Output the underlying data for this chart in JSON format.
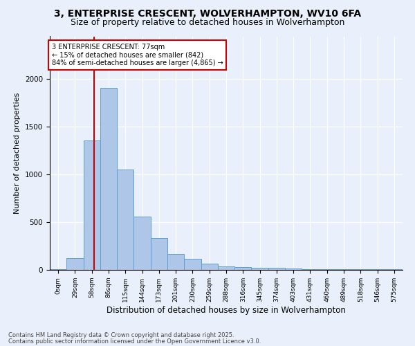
{
  "title": "3, ENTERPRISE CRESCENT, WOLVERHAMPTON, WV10 6FA",
  "subtitle": "Size of property relative to detached houses in Wolverhampton",
  "xlabel": "Distribution of detached houses by size in Wolverhampton",
  "ylabel": "Number of detached properties",
  "bar_labels": [
    "0sqm",
    "29sqm",
    "58sqm",
    "86sqm",
    "115sqm",
    "144sqm",
    "173sqm",
    "201sqm",
    "230sqm",
    "259sqm",
    "288sqm",
    "316sqm",
    "345sqm",
    "374sqm",
    "403sqm",
    "431sqm",
    "460sqm",
    "489sqm",
    "518sqm",
    "546sqm",
    "575sqm"
  ],
  "bar_values": [
    10,
    125,
    1360,
    1910,
    1055,
    560,
    335,
    170,
    115,
    65,
    38,
    30,
    25,
    20,
    15,
    5,
    5,
    5,
    5,
    5,
    10
  ],
  "bar_color": "#aec6e8",
  "bar_edge_color": "#5a9fd4",
  "property_sqm": 77,
  "annotation_title": "3 ENTERPRISE CRESCENT: 77sqm",
  "annotation_line1": "← 15% of detached houses are smaller (842)",
  "annotation_line2": "84% of semi-detached houses are larger (4,865) →",
  "annotation_box_color": "#ffffff",
  "annotation_box_edge": "#cc0000",
  "vline_color": "#cc0000",
  "footer1": "Contains HM Land Registry data © Crown copyright and database right 2025.",
  "footer2": "Contains public sector information licensed under the Open Government Licence v3.0.",
  "ylim": [
    0,
    2450
  ],
  "background_color": "#eaf0fb",
  "axes_background": "#eaf0fb",
  "grid_color": "#ffffff",
  "title_fontsize": 10,
  "subtitle_fontsize": 9,
  "bin_width": 29
}
